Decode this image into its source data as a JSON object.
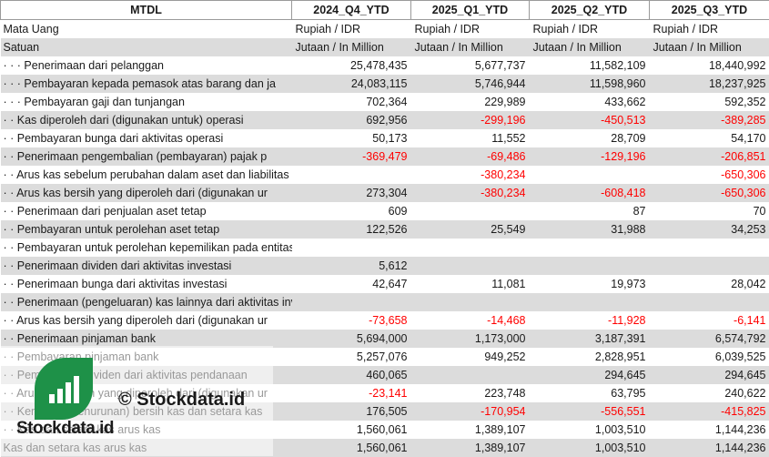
{
  "header": [
    "MTDL",
    "2024_Q4_YTD",
    "2025_Q1_YTD",
    "2025_Q2_YTD",
    "2025_Q3_YTD"
  ],
  "meta_rows": [
    {
      "label": "Mata Uang",
      "values": [
        "Rupiah / IDR",
        "Rupiah / IDR",
        "Rupiah / IDR",
        "Rupiah / IDR"
      ]
    },
    {
      "label": "Satuan",
      "values": [
        "Jutaan / In Million",
        "Jutaan / In Million",
        "Jutaan / In Million",
        "Jutaan / In Million"
      ]
    }
  ],
  "rows": [
    {
      "label": "· · · Penerimaan dari pelanggan",
      "values": [
        "25,478,435",
        "5,677,737",
        "11,582,109",
        "18,440,992"
      ]
    },
    {
      "label": "· · · Pembayaran kepada pemasok atas barang dan ja",
      "values": [
        "24,083,115",
        "5,746,944",
        "11,598,960",
        "18,237,925"
      ]
    },
    {
      "label": "· · · Pembayaran gaji dan tunjangan",
      "values": [
        "702,364",
        "229,989",
        "433,662",
        "592,352"
      ]
    },
    {
      "label": "· · Kas diperoleh dari (digunakan untuk) operasi",
      "values": [
        "692,956",
        "-299,196",
        "-450,513",
        "-389,285"
      ]
    },
    {
      "label": "· · Pembayaran bunga dari aktivitas operasi",
      "values": [
        "50,173",
        "11,552",
        "28,709",
        "54,170"
      ]
    },
    {
      "label": "· · Penerimaan pengembalian (pembayaran) pajak p",
      "values": [
        "-369,479",
        "-69,486",
        "-129,196",
        "-206,851"
      ]
    },
    {
      "label": "· · Arus kas sebelum perubahan dalam aset dan liabilitas yang diperoleh d",
      "values": [
        "",
        "-380,234",
        "",
        "-650,306"
      ]
    },
    {
      "label": "· · Arus kas bersih yang diperoleh dari (digunakan ur",
      "values": [
        "273,304",
        "-380,234",
        "-608,418",
        "-650,306"
      ]
    },
    {
      "label": "· · Penerimaan dari penjualan aset tetap",
      "values": [
        "609",
        "",
        "87",
        "70"
      ]
    },
    {
      "label": "· · Pembayaran untuk perolehan aset tetap",
      "values": [
        "122,526",
        "25,549",
        "31,988",
        "34,253"
      ]
    },
    {
      "label": "· · Pembayaran untuk perolehan kepemilikan pada entitas asosiasi",
      "values": [
        "",
        "",
        "",
        ""
      ]
    },
    {
      "label": "· · Penerimaan dividen dari aktivitas investasi",
      "values": [
        "5,612",
        "",
        "",
        ""
      ]
    },
    {
      "label": "· · Penerimaan bunga dari aktivitas investasi",
      "values": [
        "42,647",
        "11,081",
        "19,973",
        "28,042"
      ]
    },
    {
      "label": "· · Penerimaan (pengeluaran) kas lainnya dari aktivitas investasi",
      "values": [
        "",
        "",
        "",
        ""
      ]
    },
    {
      "label": "· · Arus kas bersih yang diperoleh dari (digunakan ur",
      "values": [
        "-73,658",
        "-14,468",
        "-11,928",
        "-6,141"
      ]
    },
    {
      "label": "· · Penerimaan pinjaman bank",
      "values": [
        "5,694,000",
        "1,173,000",
        "3,187,391",
        "6,574,792"
      ]
    },
    {
      "label": "· · Pembayaran pinjaman bank",
      "values": [
        "5,257,076",
        "949,252",
        "2,828,951",
        "6,039,525"
      ]
    },
    {
      "label": "· · Pembayaran dividen dari aktivitas pendanaan",
      "values": [
        "460,065",
        "",
        "294,645",
        "294,645"
      ]
    },
    {
      "label": "· · Arus kas bersih yang diperoleh dari (digunakan ur",
      "values": [
        "-23,141",
        "223,748",
        "63,795",
        "240,622"
      ]
    },
    {
      "label": "· · Kenaikan (penurunan) bersih kas dan setara kas",
      "values": [
        "176,505",
        "-170,954",
        "-556,551",
        "-415,825"
      ]
    },
    {
      "label": "· · Kas dan setara kas arus kas",
      "values": [
        "1,560,061",
        "1,389,107",
        "1,003,510",
        "1,144,236"
      ]
    },
    {
      "label": "Kas dan setara kas arus kas",
      "values": [
        "1,560,061",
        "1,389,107",
        "1,003,510",
        "1,144,236"
      ]
    }
  ],
  "watermark": {
    "copyright": "© Stockdata.id",
    "brand": "Stockdata.id",
    "logo_icon": "bar-chart-icon",
    "logo_color": "#1e9148"
  },
  "colors": {
    "negative": "#ff0000",
    "row_stripe": "#dcdcdc"
  }
}
